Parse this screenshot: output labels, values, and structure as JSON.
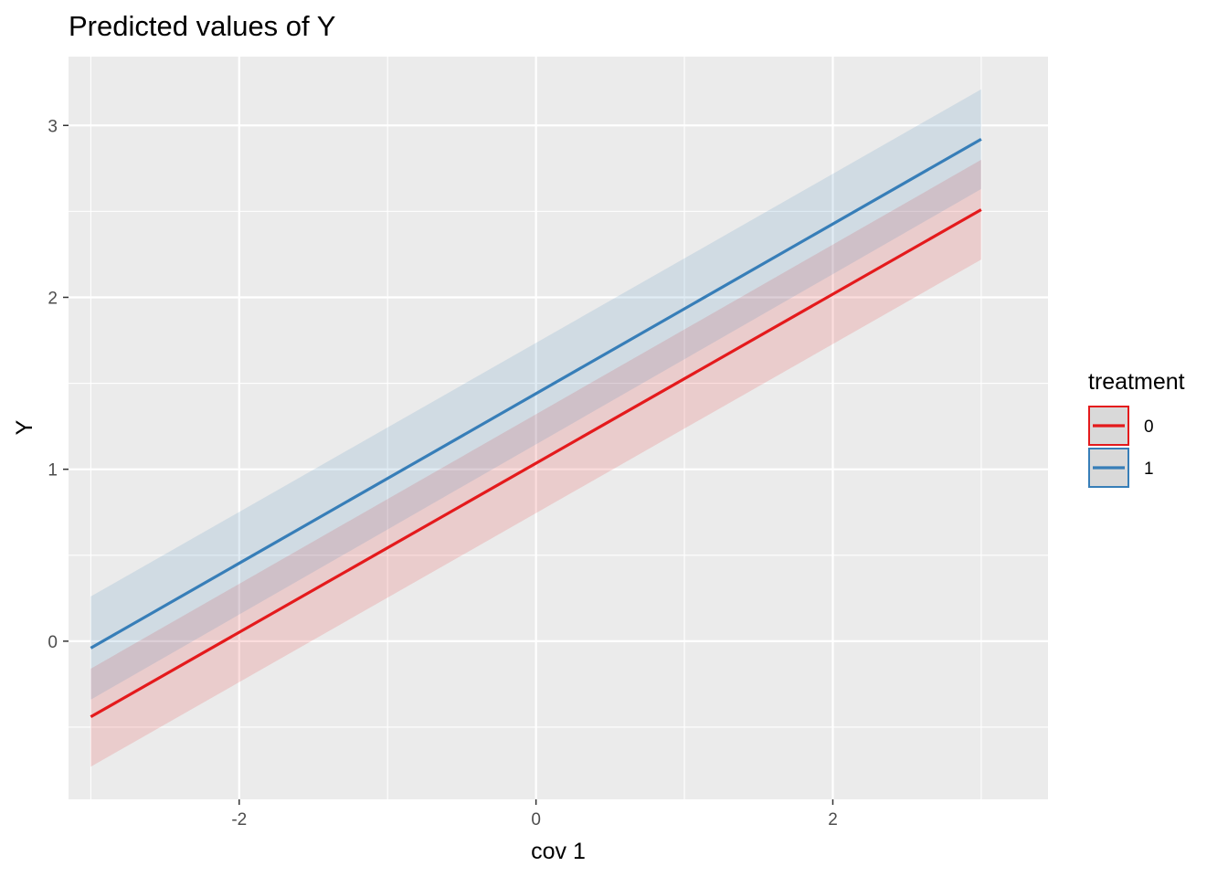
{
  "chart_data": {
    "type": "line",
    "title": "Predicted values of Y",
    "xlabel": "cov 1",
    "ylabel": "Y",
    "xlim": [
      -3.15,
      3.45
    ],
    "ylim": [
      -0.92,
      3.4
    ],
    "x_ticks": [
      -2,
      0,
      2
    ],
    "x_tick_labels": [
      "-2",
      "0",
      "2"
    ],
    "y_ticks": [
      0,
      1,
      2,
      3
    ],
    "y_tick_labels": [
      "0",
      "1",
      "2",
      "3"
    ],
    "x_minor": [
      -3,
      -1,
      1,
      3
    ],
    "y_minor": [
      -0.5,
      0.5,
      1.5,
      2.5
    ],
    "grid": true,
    "legend": {
      "title": "treatment",
      "position": "right"
    },
    "series": [
      {
        "name": "0",
        "color": "#E41A1C",
        "x": [
          -3,
          3
        ],
        "y": [
          -0.44,
          2.51
        ],
        "ci_low": [
          -0.73,
          2.22
        ],
        "ci_high": [
          -0.16,
          2.8
        ]
      },
      {
        "name": "1",
        "color": "#377EB8",
        "x": [
          -3,
          3
        ],
        "y": [
          -0.04,
          2.92
        ],
        "ci_low": [
          -0.34,
          2.63
        ],
        "ci_high": [
          0.26,
          3.21
        ]
      }
    ]
  }
}
